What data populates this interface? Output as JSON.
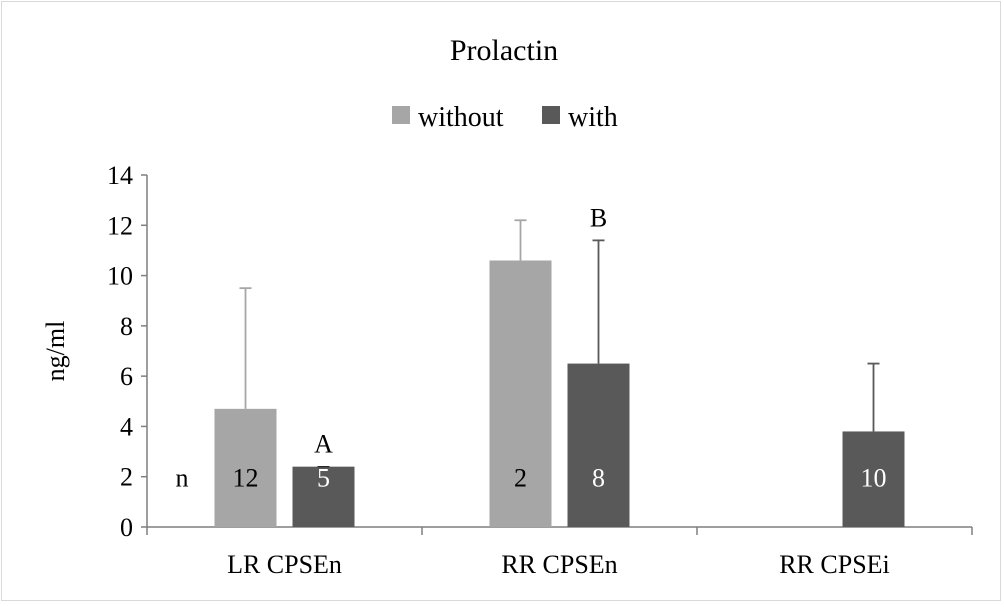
{
  "chart_data": {
    "type": "bar",
    "title": "Prolactin",
    "ylabel": "ng/ml",
    "xlabel": "",
    "ylim": [
      0,
      14
    ],
    "yticks": [
      0,
      2,
      4,
      6,
      8,
      10,
      12,
      14
    ],
    "categories": [
      "LR CPSEn",
      "RR CPSEn",
      "RR CPSEi"
    ],
    "legend_position": "top",
    "n_label": "n",
    "series": [
      {
        "name": "without",
        "color": "#a6a6a6",
        "values": [
          4.7,
          10.6,
          null
        ],
        "errors": [
          4.8,
          1.6,
          null
        ],
        "counts": [
          "12",
          "2",
          null
        ],
        "count_text_color": "#000000",
        "letters": [
          null,
          null,
          null
        ]
      },
      {
        "name": "with",
        "color": "#595959",
        "values": [
          2.4,
          6.5,
          3.8
        ],
        "errors": [
          0,
          4.9,
          2.7
        ],
        "counts": [
          "5",
          "8",
          "10"
        ],
        "count_text_color": "#ffffff",
        "letters": [
          "A",
          "B",
          null
        ]
      }
    ],
    "grid": false
  }
}
